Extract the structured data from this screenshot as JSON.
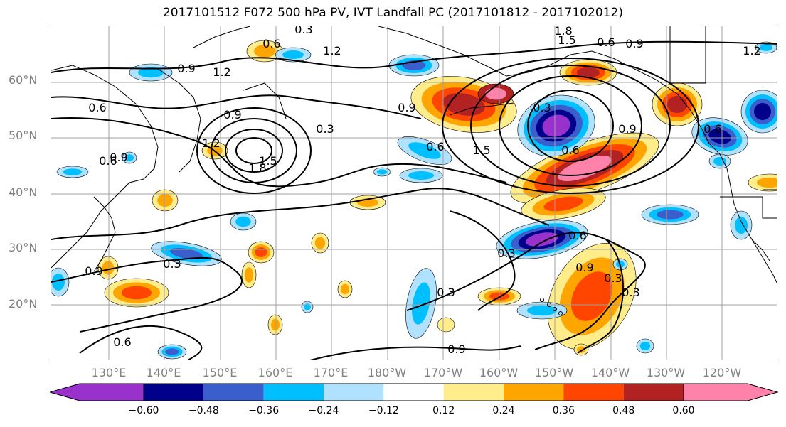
{
  "title": "2017101512 F072 500 hPa PV, IVT Landfall PC (2017101812 - 2017102012)",
  "map": {
    "lat_ticks": [
      "60°N",
      "50°N",
      "40°N",
      "30°N",
      "20°N"
    ],
    "lon_ticks": [
      "130°E",
      "140°E",
      "150°E",
      "160°E",
      "170°E",
      "180°W",
      "170°W",
      "160°W",
      "150°W",
      "140°W",
      "130°W",
      "120°W"
    ],
    "contour_labels": [
      "0.3",
      "0.6",
      "1.8",
      "1.5",
      "1.2",
      "0.9",
      "0.9",
      "1.2",
      "0.6",
      "0.9",
      "0.3",
      "1.2",
      "1.8",
      "1.5",
      "0.6",
      "0.9",
      "1.2",
      "0.6",
      "0.9",
      "0.6",
      "1.5",
      "0.3",
      "0.6",
      "0.9",
      "0.3",
      "0.9",
      "0.6",
      "0.3",
      "0.3",
      "0.3",
      "0.9",
      "0.6",
      "0.3",
      "0.9",
      "0.6"
    ],
    "shading_colors": {
      "neg_0_60": "#9932cc",
      "neg_0_48": "#00008b",
      "neg_0_36": "#3a5fcd",
      "neg_0_24": "#00bfff",
      "neg_0_12": "#b0e2ff",
      "zero": "#ffffff",
      "pos_0_12": "#ffec8b",
      "pos_0_24": "#ffa500",
      "pos_0_36": "#ff4500",
      "pos_0_48": "#b22222",
      "pos_0_60": "#ff82ab"
    },
    "contour_color": "#000000",
    "coastline_color": "#000000",
    "grid_color": "#a0a0a0"
  },
  "colorbar": {
    "colors": [
      "#9932cc",
      "#00008b",
      "#3a5fcd",
      "#00bfff",
      "#b0e2ff",
      "#ffffff",
      "#ffec8b",
      "#ffa500",
      "#ff4500",
      "#b22222",
      "#ff82ab"
    ],
    "tick_labels": [
      "−0.60",
      "−0.48",
      "−0.36",
      "−0.24",
      "−0.12",
      "0.12",
      "0.24",
      "0.36",
      "0.48",
      "0.60"
    ]
  }
}
